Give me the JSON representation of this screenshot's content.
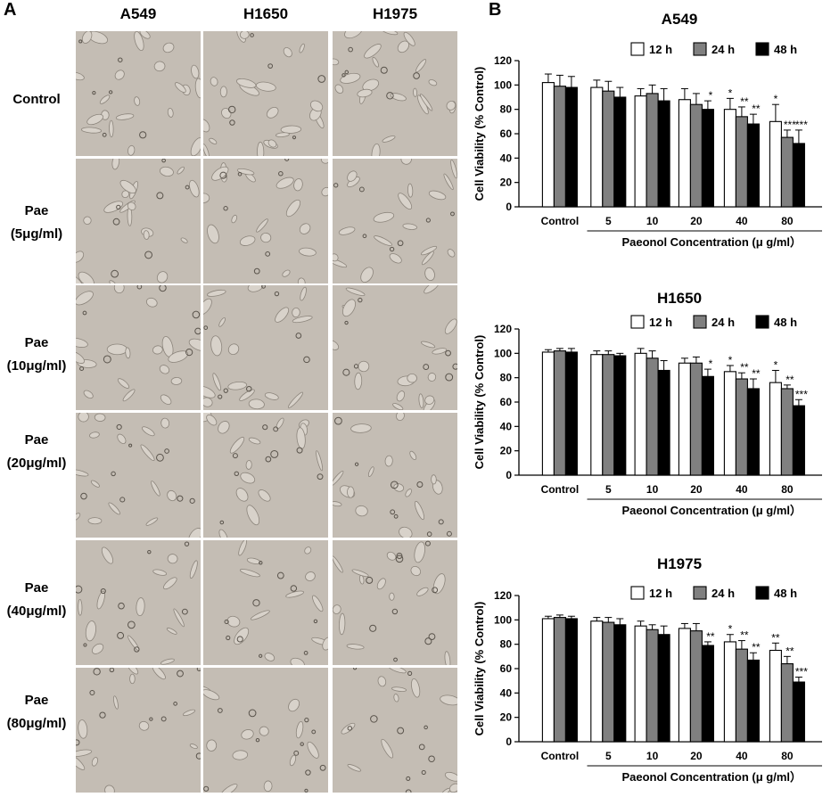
{
  "panel_a": {
    "letter": "A",
    "columns": [
      "A549",
      "H1650",
      "H1975"
    ],
    "rows": [
      {
        "line1": "Control",
        "line2": ""
      },
      {
        "line1": "Pae",
        "line2": "(5μg/ml)"
      },
      {
        "line1": "Pae",
        "line2": "(10μg/ml)"
      },
      {
        "line1": "Pae",
        "line2": "(20μg/ml)"
      },
      {
        "line1": "Pae",
        "line2": "(40μg/ml)"
      },
      {
        "line1": "Pae",
        "line2": "(80μg/ml)"
      }
    ],
    "image_background": "#c4bdb4"
  },
  "panel_b": {
    "letter": "B",
    "colors": {
      "12 h": "#ffffff",
      "24 h": "#808080",
      "48 h": "#000000"
    }
  },
  "chart_data": [
    {
      "type": "bar",
      "title": "A549",
      "ylabel": "Cell Viability (% Control)",
      "xlabel": "Paeonol Concentration (μ g/ml）",
      "categories": [
        "Control",
        "5",
        "10",
        "20",
        "40",
        "80"
      ],
      "ylim": [
        0,
        120
      ],
      "yticks": [
        0,
        20,
        40,
        60,
        80,
        100,
        120
      ],
      "legend_position": "top-right",
      "series": [
        {
          "name": "12 h",
          "values": [
            102,
            98,
            91,
            88,
            80,
            70
          ],
          "errors": [
            7,
            6,
            6,
            9,
            9,
            14
          ],
          "stars": [
            "",
            "",
            "",
            "",
            "*",
            "*"
          ]
        },
        {
          "name": "24 h",
          "values": [
            99,
            95,
            93,
            84,
            74,
            57
          ],
          "errors": [
            9,
            8,
            7,
            9,
            8,
            6
          ],
          "stars": [
            "",
            "",
            "",
            "",
            "**",
            "***"
          ]
        },
        {
          "name": "48 h",
          "values": [
            98,
            90,
            87,
            80,
            68,
            52
          ],
          "errors": [
            9,
            8,
            10,
            7,
            8,
            11
          ],
          "stars": [
            "",
            "",
            "",
            "*",
            "**",
            "***"
          ]
        }
      ]
    },
    {
      "type": "bar",
      "title": "H1650",
      "ylabel": "Cell Viability (% Control)",
      "xlabel": "Paeonol Concentration (μ g/ml）",
      "categories": [
        "Control",
        "5",
        "10",
        "20",
        "40",
        "80"
      ],
      "ylim": [
        0,
        120
      ],
      "yticks": [
        0,
        20,
        40,
        60,
        80,
        100,
        120
      ],
      "legend_position": "top-right",
      "series": [
        {
          "name": "12 h",
          "values": [
            101,
            99,
            100,
            92,
            85,
            76
          ],
          "errors": [
            2,
            3,
            4,
            4,
            5,
            10
          ],
          "stars": [
            "",
            "",
            "",
            "",
            "*",
            "*"
          ]
        },
        {
          "name": "24 h",
          "values": [
            102,
            99,
            96,
            92,
            79,
            71
          ],
          "errors": [
            2,
            3,
            6,
            5,
            5,
            3
          ],
          "stars": [
            "",
            "",
            "",
            "",
            "**",
            "**"
          ]
        },
        {
          "name": "48 h",
          "values": [
            101,
            98,
            86,
            81,
            71,
            57
          ],
          "errors": [
            3,
            2,
            8,
            6,
            8,
            5
          ],
          "stars": [
            "",
            "",
            "",
            "*",
            "**",
            "***"
          ]
        }
      ]
    },
    {
      "type": "bar",
      "title": "H1975",
      "ylabel": "Cell Viability (% Control)",
      "xlabel": "Paeonol Concentration (μ g/ml）",
      "categories": [
        "Control",
        "5",
        "10",
        "20",
        "40",
        "80"
      ],
      "ylim": [
        0,
        120
      ],
      "yticks": [
        0,
        20,
        40,
        60,
        80,
        100,
        120
      ],
      "legend_position": "top-right",
      "series": [
        {
          "name": "12 h",
          "values": [
            101,
            99,
            95,
            93,
            82,
            75
          ],
          "errors": [
            2,
            3,
            4,
            4,
            6,
            6
          ],
          "stars": [
            "",
            "",
            "",
            "",
            "*",
            "**"
          ]
        },
        {
          "name": "24 h",
          "values": [
            102,
            98,
            92,
            91,
            76,
            64
          ],
          "errors": [
            2,
            4,
            4,
            6,
            7,
            6
          ],
          "stars": [
            "",
            "",
            "",
            "",
            "**",
            "**"
          ]
        },
        {
          "name": "48 h",
          "values": [
            101,
            96,
            88,
            79,
            67,
            49
          ],
          "errors": [
            2,
            5,
            7,
            3,
            6,
            4
          ],
          "stars": [
            "",
            "",
            "",
            "**",
            "**",
            "***"
          ]
        }
      ]
    }
  ]
}
